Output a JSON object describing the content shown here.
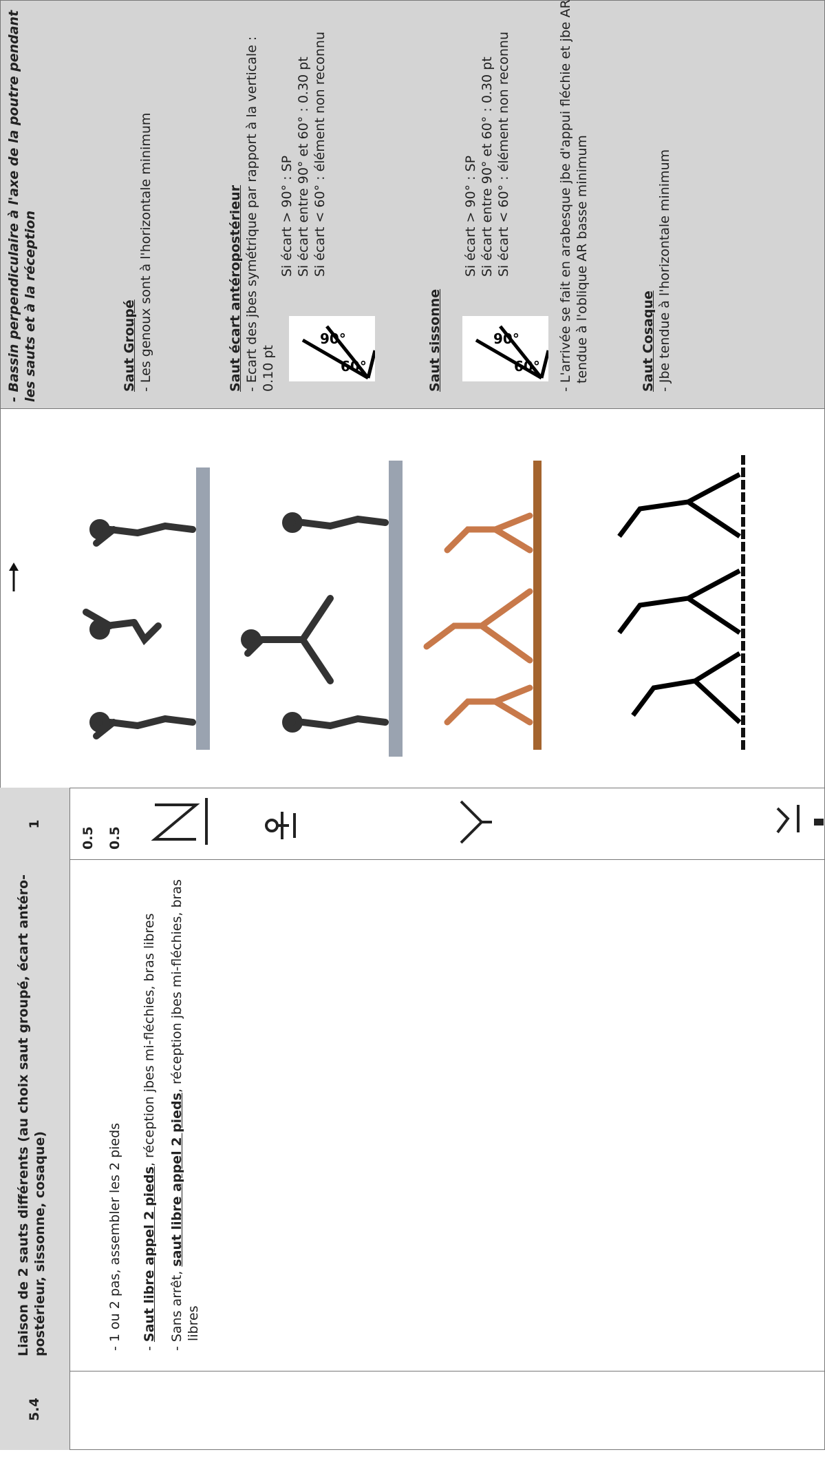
{
  "header": {
    "number": "5.4",
    "title": "Liaison de 2 sauts différents (au choix saut groupé, écart antéro-postérieur, sissonne, cosaque)",
    "score": "1"
  },
  "scores": [
    "0.5",
    "0.5"
  ],
  "description": [
    {
      "prefix": "- 1 ou 2 pas, assembler les 2 pieds"
    },
    {
      "prefix": "- ",
      "strong": "Saut libre appel 2 pieds",
      "suffix": ", réception jbes mi-fléchies, bras libres"
    },
    {
      "prefix": "- Sans arrêt, ",
      "strong": "saut libre appel 2 pieds",
      "suffix": ", réception jbes mi-fléchies, bras libres"
    }
  ],
  "criteria": {
    "intro": "- Bassin perpendiculaire à l'axe de la poutre pendant les sauts et à la réception",
    "groupe": {
      "title": "Saut Groupé",
      "text": "- Les genoux sont à l'horizontale minimum"
    },
    "ecart": {
      "title": "Saut écart antéropostérieur",
      "text": "- Ecart des jbes symétrique par rapport à la verticale : 0.10 pt",
      "rules": [
        "Si écart > 90° : SP",
        "Si écart entre 90° et 60° : 0.30 pt",
        "Si écart < 60° : élément non reconnu"
      ]
    },
    "sissonne": {
      "title": "Saut sissonne",
      "rules": [
        "Si écart > 90° : SP",
        "Si écart entre 90° et 60° : 0.30 pt",
        "Si écart < 60° : élément non reconnu"
      ],
      "text": "- L'arrivée se fait en arabesque jbe d'appui fléchie et jbe AR tendue à l'oblique AR basse minimum"
    },
    "cosaque": {
      "title": "Saut Cosaque",
      "text": "- Jbe tendue à l'horizontale minimum"
    },
    "angle_labels": [
      "90°",
      "60°"
    ]
  }
}
